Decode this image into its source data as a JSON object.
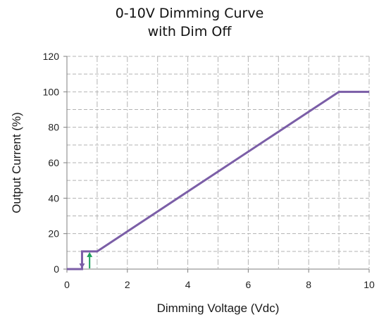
{
  "chart_data": {
    "type": "line",
    "title": [
      "0-10V Dimming Curve",
      "with Dim Off"
    ],
    "xlabel": "Dimming Voltage (Vdc)",
    "ylabel": "Output Current (%)",
    "xlim": [
      0,
      10
    ],
    "ylim": [
      0,
      120
    ],
    "xticks": [
      0,
      2,
      4,
      6,
      8,
      10
    ],
    "yticks": [
      0,
      20,
      40,
      60,
      80,
      100,
      120
    ],
    "grid": true,
    "series": [
      {
        "color": "#7b5ea7",
        "x": [
          0,
          0.5,
          0.5,
          1,
          9,
          10
        ],
        "y": [
          0,
          0,
          10,
          10,
          100,
          100
        ]
      }
    ],
    "annotations": [
      {
        "type": "arrow",
        "direction": "down",
        "x": 0.5,
        "y_from": 10,
        "y_to": 0,
        "color": "#7b5ea7"
      },
      {
        "type": "arrow",
        "direction": "up",
        "x": 0.75,
        "y_from": 0,
        "y_to": 10,
        "color": "#1aa05a"
      }
    ]
  }
}
